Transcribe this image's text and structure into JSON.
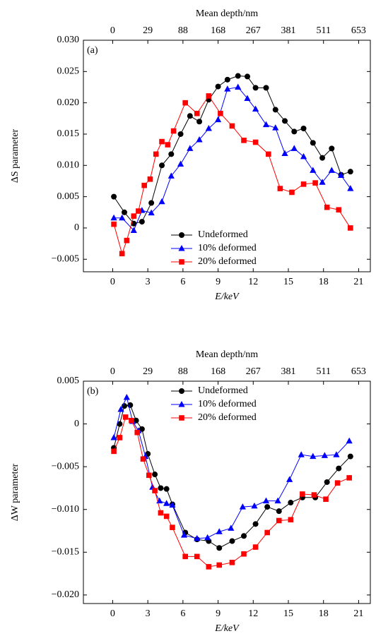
{
  "chart_data": [
    {
      "type": "line",
      "panel_label": "(a)",
      "ylabel": "ΔS parameter",
      "xlabel": "E/keV",
      "x2label": "Mean depth/nm",
      "xlim": [
        -2.5,
        22
      ],
      "xticks": [
        0,
        3,
        6,
        9,
        12,
        15,
        18,
        21
      ],
      "x2ticks": [
        {
          "value": 0,
          "label": "0"
        },
        {
          "value": 3,
          "label": "29"
        },
        {
          "value": 6,
          "label": "88"
        },
        {
          "value": 9,
          "label": "168"
        },
        {
          "value": 12,
          "label": "267"
        },
        {
          "value": 15,
          "label": "381"
        },
        {
          "value": 18,
          "label": "511"
        },
        {
          "value": 21,
          "label": "653"
        }
      ],
      "ylim": [
        -0.007,
        0.03
      ],
      "yticks": [
        {
          "value": -0.005,
          "label": "−0.005"
        },
        0,
        0.005,
        {
          "value": 0.01,
          "label": "0.010"
        },
        0.015,
        {
          "value": 0.02,
          "label": "0.020"
        },
        0.025,
        {
          "value": 0.03,
          "label": "0.030"
        }
      ],
      "legend_position": "lower center",
      "series": [
        {
          "name": "Undeformed",
          "color": "#000000",
          "marker": "circle",
          "x": [
            0.1,
            1.0,
            1.8,
            2.5,
            3.3,
            4.2,
            5.0,
            5.8,
            6.6,
            7.4,
            8.2,
            9.0,
            9.8,
            10.7,
            11.5,
            12.2,
            13.1,
            13.9,
            14.7,
            15.5,
            16.3,
            17.1,
            17.9,
            18.7,
            19.5,
            20.3
          ],
          "values": [
            0.005,
            0.0025,
            0.0007,
            0.001,
            0.004,
            0.01,
            0.0118,
            0.015,
            0.0179,
            0.017,
            0.0205,
            0.0226,
            0.0237,
            0.0243,
            0.0242,
            0.0224,
            0.0224,
            0.0189,
            0.0171,
            0.0154,
            0.0159,
            0.0136,
            0.0112,
            0.0127,
            0.0085,
            0.009
          ]
        },
        {
          "name": "10% deformed",
          "color": "#0000ff",
          "marker": "triangle",
          "x": [
            0.1,
            0.8,
            1.8,
            2.5,
            3.3,
            4.2,
            5.0,
            5.8,
            6.6,
            7.4,
            8.2,
            9.0,
            9.8,
            10.7,
            11.5,
            12.2,
            13.1,
            13.9,
            14.7,
            15.5,
            16.3,
            17.1,
            17.9,
            18.7,
            19.5,
            20.3
          ],
          "values": [
            0.0016,
            0.0016,
            -0.0004,
            0.0028,
            0.0024,
            0.0042,
            0.0083,
            0.0102,
            0.0127,
            0.0141,
            0.0159,
            0.0173,
            0.0222,
            0.0225,
            0.0207,
            0.019,
            0.0165,
            0.016,
            0.0119,
            0.0127,
            0.0114,
            0.0092,
            0.0073,
            0.0092,
            0.0084,
            0.0063
          ]
        },
        {
          "name": "20% deformed",
          "color": "#ff0000",
          "marker": "square",
          "x": [
            0.1,
            0.8,
            1.2,
            1.8,
            2.2,
            2.7,
            3.2,
            3.7,
            4.2,
            4.7,
            5.2,
            6.2,
            7.2,
            8.2,
            9.2,
            10.2,
            11.2,
            12.2,
            13.3,
            14.3,
            15.3,
            16.3,
            17.3,
            18.3,
            19.3,
            20.3
          ],
          "values": [
            0.0006,
            -0.0041,
            -0.002,
            0.0019,
            0.0027,
            0.0068,
            0.0078,
            0.0118,
            0.0138,
            0.0133,
            0.0155,
            0.02,
            0.0183,
            0.0211,
            0.0183,
            0.0163,
            0.014,
            0.0137,
            0.0118,
            0.0063,
            0.0057,
            0.007,
            0.0072,
            0.0033,
            0.0029,
            0
          ]
        }
      ]
    },
    {
      "type": "line",
      "panel_label": "(b)",
      "ylabel": "ΔW parameter",
      "xlabel": "E/keV",
      "x2label": "Mean depth/nm",
      "xlim": [
        -2.5,
        22
      ],
      "xticks": [
        0,
        3,
        6,
        9,
        12,
        15,
        18,
        21
      ],
      "x2ticks": [
        {
          "value": 0,
          "label": "0"
        },
        {
          "value": 3,
          "label": "29"
        },
        {
          "value": 6,
          "label": "88"
        },
        {
          "value": 9,
          "label": "168"
        },
        {
          "value": 12,
          "label": "267"
        },
        {
          "value": 15,
          "label": "381"
        },
        {
          "value": 18,
          "label": "511"
        },
        {
          "value": 21,
          "label": "653"
        }
      ],
      "ylim": [
        -0.021,
        0.005
      ],
      "yticks": [
        {
          "value": -0.02,
          "label": "−0.020"
        },
        {
          "value": -0.015,
          "label": "−0.015"
        },
        {
          "value": -0.01,
          "label": "−0.010"
        },
        {
          "value": -0.005,
          "label": "−0.005"
        },
        0,
        0.005
      ],
      "legend_position": "upper center",
      "series": [
        {
          "name": "Undeformed",
          "color": "#000000",
          "marker": "circle",
          "x": [
            0.1,
            0.6,
            1.0,
            1.5,
            2.0,
            2.5,
            3.0,
            3.6,
            4.1,
            4.6,
            5.1,
            6.2,
            7.2,
            8.2,
            9.1,
            10.2,
            11.2,
            12.2,
            13.2,
            14.2,
            15.2,
            16.2,
            17.3,
            18.3,
            19.3,
            20.3
          ],
          "values": [
            -0.0028,
            0.0,
            0.0021,
            0.0022,
            0.0004,
            -0.0006,
            -0.0035,
            -0.0059,
            -0.0075,
            -0.0076,
            -0.0094,
            -0.0127,
            -0.0135,
            -0.0137,
            -0.0145,
            -0.0137,
            -0.0131,
            -0.0117,
            -0.0097,
            -0.0102,
            -0.0092,
            -0.0086,
            -0.0086,
            -0.0068,
            -0.0052,
            -0.0038
          ]
        },
        {
          "name": "10% deformed",
          "color": "#0000ff",
          "marker": "triangle",
          "x": [
            0.1,
            0.7,
            1.2,
            1.7,
            2.2,
            2.8,
            3.4,
            4.0,
            4.6,
            5.1,
            6.1,
            7.2,
            8.1,
            9.1,
            10.1,
            11.1,
            12.1,
            13.1,
            14.1,
            15.1,
            16.1,
            17.1,
            18.1,
            19.1,
            20.2
          ],
          "values": [
            -0.0016,
            0.0017,
            0.0031,
            0.0003,
            -0.0008,
            -0.0038,
            -0.0074,
            -0.009,
            -0.0093,
            -0.0095,
            -0.013,
            -0.0134,
            -0.0133,
            -0.0126,
            -0.0122,
            -0.0097,
            -0.0096,
            -0.009,
            -0.009,
            -0.0065,
            -0.0036,
            -0.0038,
            -0.0037,
            -0.0036,
            -0.002
          ]
        },
        {
          "name": "20% deformed",
          "color": "#ff0000",
          "marker": "square",
          "x": [
            0.1,
            0.6,
            1.1,
            1.6,
            2.1,
            2.6,
            3.1,
            3.6,
            4.1,
            4.6,
            5.1,
            6.2,
            7.2,
            8.2,
            9.1,
            10.2,
            11.2,
            12.2,
            13.2,
            14.2,
            15.2,
            16.2,
            17.2,
            18.2,
            19.2,
            20.2
          ],
          "values": [
            -0.0032,
            -0.0016,
            0.0008,
            0.0004,
            -0.001,
            -0.0041,
            -0.006,
            -0.0078,
            -0.0104,
            -0.0108,
            -0.0121,
            -0.0155,
            -0.0155,
            -0.0167,
            -0.0165,
            -0.0162,
            -0.0152,
            -0.0144,
            -0.0127,
            -0.0113,
            -0.0112,
            -0.0082,
            -0.0083,
            -0.0088,
            -0.0069,
            -0.0063
          ]
        }
      ]
    }
  ]
}
